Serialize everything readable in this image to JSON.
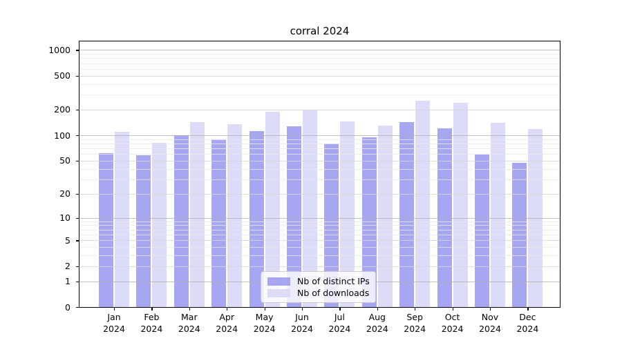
{
  "title": "corral 2024",
  "chart_data": {
    "type": "bar",
    "title": "corral 2024",
    "xlabel": "",
    "ylabel": "",
    "scale": "log1p",
    "ylim": [
      0,
      1000
    ],
    "grid": true,
    "legend_position": "inside bottom-center",
    "categories": [
      "Jan 2024",
      "Feb 2024",
      "Mar 2024",
      "Apr 2024",
      "May 2024",
      "Jun 2024",
      "Jul 2024",
      "Aug 2024",
      "Sep 2024",
      "Oct 2024",
      "Nov 2024",
      "Dec 2024"
    ],
    "yticks": [
      0,
      1,
      2,
      5,
      10,
      20,
      50,
      100,
      200,
      500,
      1000
    ],
    "series": [
      {
        "name": "Nb of distinct IPs",
        "color": "#a6a6f2",
        "values": [
          62,
          58,
          100,
          90,
          113,
          128,
          80,
          94,
          143,
          120,
          59,
          47
        ]
      },
      {
        "name": "Nb of downloads",
        "color": "#dcdcf8",
        "values": [
          110,
          82,
          143,
          135,
          188,
          195,
          145,
          131,
          255,
          240,
          140,
          119
        ]
      }
    ]
  },
  "colors": {
    "axis": "#000000",
    "grid_major": "#b0b0b0",
    "grid_mid": "#d6d6d6",
    "grid_minor": "#e9e9e9",
    "legend_border": "#c9c9c9"
  }
}
